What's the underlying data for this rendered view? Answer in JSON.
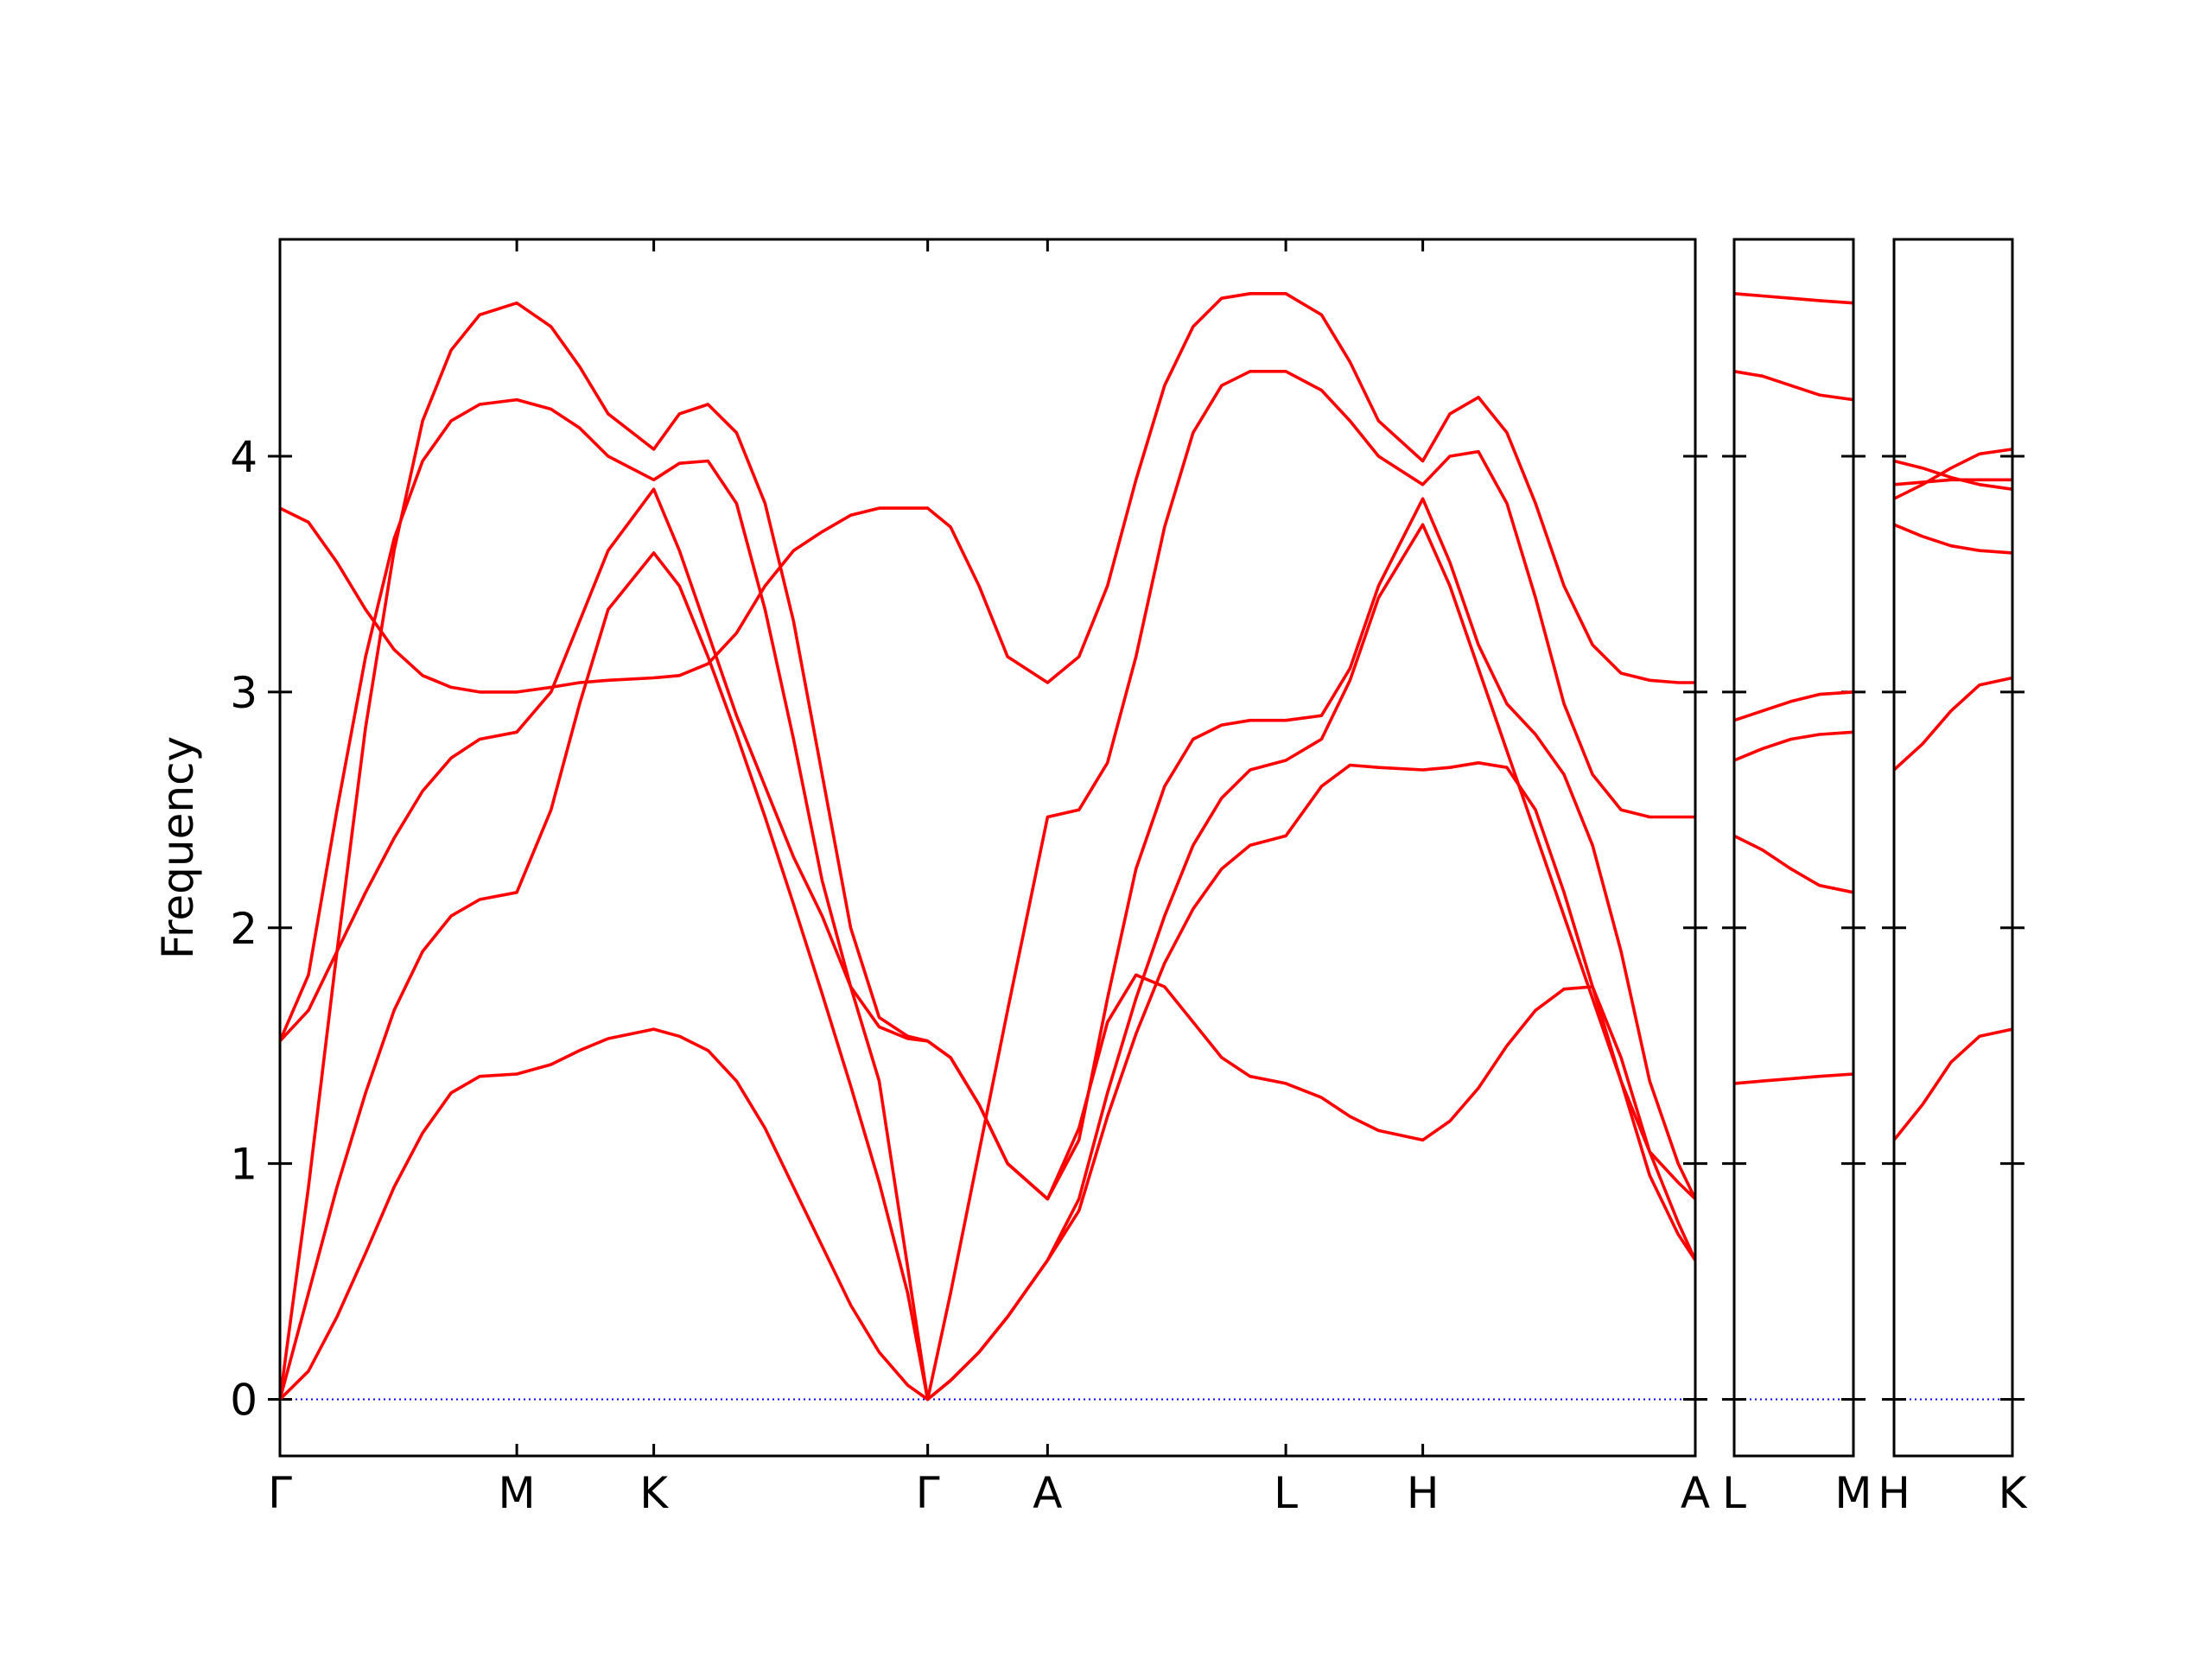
{
  "chart_data": [
    {
      "type": "line",
      "ylabel": "Frequency",
      "color": "#ff0000",
      "hline": 0,
      "hline_color": "#0000ff",
      "ytick_labels": true,
      "xlim": [
        0,
        9.92
      ],
      "ylim": [
        -0.24,
        4.92
      ],
      "yticks": [
        0,
        1,
        2,
        3,
        4
      ],
      "xticks": [
        {
          "value": 0,
          "label": "Γ"
        },
        {
          "value": 1.66,
          "label": "M"
        },
        {
          "value": 2.62,
          "label": "K"
        },
        {
          "value": 4.54,
          "label": "Γ"
        },
        {
          "value": 5.38,
          "label": "A"
        },
        {
          "value": 7.05,
          "label": "L"
        },
        {
          "value": 8.01,
          "label": "H"
        },
        {
          "value": 9.92,
          "label": "A"
        }
      ],
      "x": [
        0,
        0.2,
        0.4,
        0.6,
        0.8,
        1.0,
        1.2,
        1.4,
        1.66,
        1.9,
        2.1,
        2.3,
        2.62,
        2.8,
        3.0,
        3.2,
        3.4,
        3.6,
        3.8,
        4.0,
        4.2,
        4.4,
        4.54,
        4.7,
        4.9,
        5.1,
        5.38,
        5.6,
        5.8,
        6.0,
        6.2,
        6.4,
        6.6,
        6.8,
        7.05,
        7.3,
        7.5,
        7.7,
        8.01,
        8.2,
        8.4,
        8.6,
        8.8,
        9.0,
        9.2,
        9.4,
        9.6,
        9.8,
        9.92
      ],
      "series": [
        {
          "values": [
            0,
            0.12,
            0.35,
            0.62,
            0.9,
            1.13,
            1.3,
            1.37,
            1.38,
            1.42,
            1.48,
            1.53,
            1.57,
            1.54,
            1.48,
            1.35,
            1.15,
            0.9,
            0.65,
            0.4,
            0.2,
            0.06,
            0,
            0.08,
            0.2,
            0.35,
            0.59,
            0.8,
            1.2,
            1.55,
            1.85,
            2.08,
            2.25,
            2.35,
            2.39,
            2.6,
            2.69,
            2.68,
            2.67,
            2.68,
            2.7,
            2.68,
            2.5,
            2.15,
            1.75,
            1.35,
            0.95,
            0.7,
            0.59
          ]
        },
        {
          "values": [
            0,
            0.45,
            0.9,
            1.3,
            1.65,
            1.9,
            2.05,
            2.12,
            2.15,
            2.5,
            2.95,
            3.35,
            3.59,
            3.45,
            3.15,
            2.82,
            2.47,
            2.1,
            1.72,
            1.33,
            0.92,
            0.45,
            0,
            0.08,
            0.2,
            0.35,
            0.59,
            0.85,
            1.3,
            1.7,
            2.05,
            2.35,
            2.55,
            2.67,
            2.71,
            2.8,
            3.05,
            3.4,
            3.71,
            3.45,
            3.1,
            2.75,
            2.4,
            2.05,
            1.7,
            1.35,
            1.05,
            0.92,
            0.85
          ]
        },
        {
          "values": [
            0,
            0.9,
            1.9,
            2.85,
            3.6,
            4.15,
            4.45,
            4.6,
            4.65,
            4.55,
            4.38,
            4.18,
            4.03,
            4.18,
            4.22,
            4.1,
            3.8,
            3.3,
            2.65,
            2.0,
            1.62,
            1.54,
            1.52,
            1.45,
            1.25,
            1.0,
            0.85,
            1.15,
            1.6,
            1.8,
            1.75,
            1.6,
            1.45,
            1.37,
            1.34,
            1.28,
            1.2,
            1.14,
            1.1,
            1.18,
            1.32,
            1.5,
            1.65,
            1.74,
            1.75,
            1.45,
            1.05,
            0.75,
            0.59
          ]
        },
        {
          "values": [
            1.52,
            1.65,
            1.9,
            2.15,
            2.38,
            2.58,
            2.72,
            2.8,
            2.83,
            3.0,
            3.3,
            3.6,
            3.86,
            3.6,
            3.25,
            2.9,
            2.6,
            2.3,
            2.05,
            1.75,
            1.35,
            0.56,
            0,
            0.45,
            1.05,
            1.65,
            2.47,
            2.5,
            2.7,
            3.15,
            3.7,
            4.1,
            4.3,
            4.36,
            4.36,
            4.28,
            4.15,
            4.0,
            3.88,
            4.0,
            4.02,
            3.8,
            3.4,
            2.95,
            2.65,
            2.5,
            2.47,
            2.47,
            2.47
          ]
        },
        {
          "values": [
            1.52,
            1.8,
            2.5,
            3.15,
            3.65,
            3.98,
            4.15,
            4.22,
            4.24,
            4.2,
            4.12,
            4.0,
            3.9,
            3.97,
            3.98,
            3.8,
            3.35,
            2.8,
            2.2,
            1.75,
            1.58,
            1.53,
            1.52,
            1.45,
            1.25,
            1.0,
            0.85,
            1.1,
            1.7,
            2.25,
            2.6,
            2.8,
            2.86,
            2.88,
            2.88,
            2.9,
            3.1,
            3.45,
            3.82,
            3.55,
            3.2,
            2.95,
            2.82,
            2.65,
            2.35,
            1.9,
            1.35,
            1.0,
            0.85
          ]
        },
        {
          "values": [
            3.78,
            3.72,
            3.55,
            3.35,
            3.18,
            3.07,
            3.02,
            3.0,
            3.0,
            3.02,
            3.04,
            3.05,
            3.06,
            3.07,
            3.12,
            3.25,
            3.45,
            3.6,
            3.68,
            3.75,
            3.78,
            3.78,
            3.78,
            3.7,
            3.45,
            3.15,
            3.04,
            3.15,
            3.45,
            3.9,
            4.3,
            4.55,
            4.67,
            4.69,
            4.69,
            4.6,
            4.4,
            4.15,
            3.98,
            4.18,
            4.25,
            4.1,
            3.8,
            3.45,
            3.2,
            3.08,
            3.05,
            3.04,
            3.04
          ]
        }
      ]
    },
    {
      "type": "line",
      "color": "#ff0000",
      "hline": 0,
      "hline_color": "#0000ff",
      "ytick_labels": false,
      "xlim": [
        0,
        0.84
      ],
      "ylim": [
        -0.24,
        4.92
      ],
      "yticks": [
        0,
        1,
        2,
        3,
        4
      ],
      "xticks": [
        {
          "value": 0,
          "label": "L"
        },
        {
          "value": 0.84,
          "label": "M"
        }
      ],
      "x": [
        0,
        0.2,
        0.4,
        0.6,
        0.84
      ],
      "series": [
        {
          "values": [
            1.34,
            1.35,
            1.36,
            1.37,
            1.38
          ]
        },
        {
          "values": [
            2.39,
            2.33,
            2.25,
            2.18,
            2.15
          ]
        },
        {
          "values": [
            2.71,
            2.76,
            2.8,
            2.82,
            2.83
          ]
        },
        {
          "values": [
            2.88,
            2.92,
            2.96,
            2.99,
            3.0
          ]
        },
        {
          "values": [
            4.36,
            4.34,
            4.3,
            4.26,
            4.24
          ]
        },
        {
          "values": [
            4.69,
            4.68,
            4.67,
            4.66,
            4.65
          ]
        }
      ]
    },
    {
      "type": "line",
      "color": "#ff0000",
      "hline": 0,
      "hline_color": "#0000ff",
      "ytick_labels": false,
      "xlim": [
        0,
        0.83
      ],
      "ylim": [
        -0.24,
        4.92
      ],
      "yticks": [
        0,
        1,
        2,
        3,
        4
      ],
      "xticks": [
        {
          "value": 0,
          "label": "H"
        },
        {
          "value": 0.83,
          "label": "K"
        }
      ],
      "x": [
        0,
        0.2,
        0.4,
        0.6,
        0.83
      ],
      "series": [
        {
          "values": [
            1.1,
            1.25,
            1.43,
            1.54,
            1.57
          ]
        },
        {
          "values": [
            2.67,
            2.78,
            2.92,
            3.03,
            3.06
          ]
        },
        {
          "values": [
            3.71,
            3.66,
            3.62,
            3.6,
            3.59
          ]
        },
        {
          "values": [
            3.82,
            3.88,
            3.95,
            4.01,
            4.03
          ]
        },
        {
          "values": [
            3.88,
            3.89,
            3.9,
            3.9,
            3.9
          ]
        },
        {
          "values": [
            3.98,
            3.95,
            3.91,
            3.88,
            3.86
          ]
        }
      ]
    }
  ]
}
